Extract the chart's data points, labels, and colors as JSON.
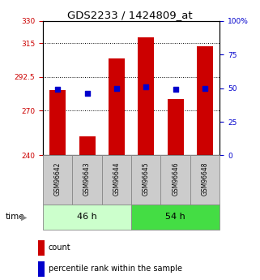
{
  "title": "GDS2233 / 1424809_at",
  "samples": [
    "GSM96642",
    "GSM96643",
    "GSM96644",
    "GSM96645",
    "GSM96646",
    "GSM96648"
  ],
  "bar_values": [
    284,
    253,
    305,
    319,
    278,
    313
  ],
  "percentile_values": [
    49,
    46,
    50,
    51,
    49,
    50
  ],
  "bar_color": "#cc0000",
  "percentile_color": "#0000cc",
  "ylim_left": [
    240,
    330
  ],
  "ylim_right": [
    0,
    100
  ],
  "yticks_left": [
    240,
    270,
    292.5,
    315,
    330
  ],
  "ytick_labels_left": [
    "240",
    "270",
    "292.5",
    "315",
    "330"
  ],
  "yticks_right": [
    0,
    25,
    50,
    75,
    100
  ],
  "ytick_labels_right": [
    "0",
    "25",
    "50",
    "75",
    "100%"
  ],
  "hlines": [
    270,
    292.5,
    315
  ],
  "groups": [
    {
      "label": "46 h",
      "indices": [
        0,
        1,
        2
      ],
      "color": "#ccffcc"
    },
    {
      "label": "54 h",
      "indices": [
        3,
        4,
        5
      ],
      "color": "#44dd44"
    }
  ],
  "legend_items": [
    {
      "label": "count",
      "color": "#cc0000"
    },
    {
      "label": "percentile rank within the sample",
      "color": "#0000cc"
    }
  ],
  "bar_width": 0.55,
  "tick_label_fontsize": 6.5,
  "title_fontsize": 9.5,
  "sample_fontsize": 5.5,
  "group_fontsize": 8,
  "legend_fontsize": 7
}
